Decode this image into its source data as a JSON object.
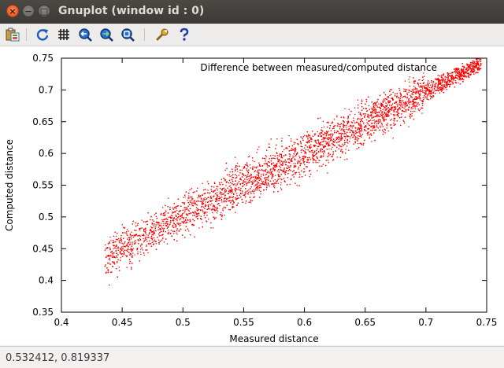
{
  "window": {
    "title": "Gnuplot (window id : 0)",
    "close_glyph": "×",
    "minimize_glyph": "−",
    "maximize_glyph": "□"
  },
  "toolbar": {
    "icons": [
      "copy-to-clipboard-icon",
      "replot-icon",
      "grid-icon",
      "previous-zoom-icon",
      "next-zoom-icon",
      "autoscale-icon",
      "settings-icon",
      "help-icon"
    ]
  },
  "status": {
    "coordinates": "0.532412,  0.819337"
  },
  "colors": {
    "series": "#ff0000",
    "titlebar": "#3c3b37"
  },
  "chart_data": {
    "type": "scatter",
    "title": "",
    "legend": "Difference between measured/computed distance",
    "legend_position": "top-right",
    "xlabel": "Measured distance",
    "ylabel": "Computed distance",
    "xlim": [
      0.4,
      0.75
    ],
    "ylim": [
      0.35,
      0.75
    ],
    "xticks": [
      "0.4",
      "0.45",
      "0.5",
      "0.55",
      "0.6",
      "0.65",
      "0.7",
      "0.75"
    ],
    "yticks": [
      "0.35",
      "0.4",
      "0.45",
      "0.5",
      "0.55",
      "0.6",
      "0.65",
      "0.7",
      "0.75"
    ],
    "grid": false,
    "series": [
      {
        "name": "Difference between measured/computed distance",
        "color": "#ff0000",
        "x_range": [
          0.435,
          0.745
        ],
        "trend": {
          "slope": 0.98,
          "intercept": 0.013
        },
        "approx_spread": 0.018,
        "approx_points": 6000
      }
    ]
  }
}
